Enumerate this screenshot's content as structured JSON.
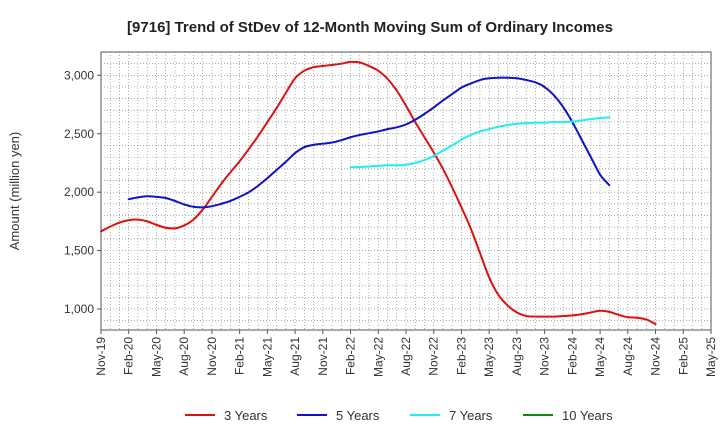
{
  "chart_data": {
    "type": "line",
    "title": "[9716]  Trend of StDev of 12-Month Moving Sum of Ordinary Incomes",
    "ylabel": "Amount (million yen)",
    "xlabel": "",
    "ylim": [
      820,
      3200
    ],
    "yticks": [
      1000,
      1500,
      2000,
      2500,
      3000
    ],
    "ytick_labels": [
      "1,000",
      "1,500",
      "2,000",
      "2,500",
      "3,000"
    ],
    "xtick_labels": [
      "Nov-19",
      "Feb-20",
      "May-20",
      "Aug-20",
      "Nov-20",
      "Feb-21",
      "May-21",
      "Aug-21",
      "Nov-21",
      "Feb-22",
      "May-22",
      "Aug-22",
      "Nov-22",
      "Feb-23",
      "May-23",
      "Aug-23",
      "Nov-23",
      "Feb-24",
      "May-24",
      "Aug-24",
      "Nov-24",
      "Feb-25",
      "May-25"
    ],
    "grid": true,
    "legend_position": "bottom",
    "colors": {
      "3 Years": "#dd1111",
      "5 Years": "#1111cc",
      "7 Years": "#22eeee",
      "10 Years": "#118811"
    },
    "series": [
      {
        "name": "3 Years",
        "color": "#dd1111",
        "values": [
          1665,
          1705,
          1740,
          1760,
          1765,
          1750,
          1720,
          1695,
          1690,
          1715,
          1765,
          1850,
          1960,
          2070,
          2170,
          2265,
          2370,
          2480,
          2600,
          2720,
          2850,
          2975,
          3040,
          3070,
          3080,
          3090,
          3100,
          3115,
          3110,
          3080,
          3040,
          2970,
          2870,
          2740,
          2600,
          2470,
          2340,
          2200,
          2040,
          1870,
          1690,
          1480,
          1270,
          1120,
          1030,
          970,
          940,
          935,
          935,
          935,
          940,
          945,
          955,
          970,
          985,
          975,
          950,
          930,
          925,
          910,
          870
        ]
      },
      {
        "name": "5 Years",
        "color": "#1111cc",
        "values": [
          null,
          null,
          null,
          null,
          null,
          null,
          null,
          null,
          null,
          null,
          null,
          null,
          null,
          null,
          null,
          null,
          null,
          null,
          null,
          null,
          null,
          null,
          null,
          null,
          null,
          null,
          null,
          null,
          null,
          null,
          null,
          null,
          null,
          null,
          null,
          null,
          null,
          null,
          null,
          null,
          null,
          null,
          null,
          null,
          null,
          null,
          null,
          null,
          null,
          null,
          null,
          null,
          null,
          null,
          null,
          null,
          null,
          null,
          null,
          null,
          null
        ],
        "values_points": [
          [
            3,
            1940
          ],
          [
            4,
            1955
          ],
          [
            5,
            1965
          ],
          [
            6,
            1960
          ],
          [
            7,
            1950
          ],
          [
            8,
            1925
          ],
          [
            9,
            1895
          ],
          [
            10,
            1875
          ],
          [
            11,
            1870
          ],
          [
            12,
            1880
          ],
          [
            13,
            1900
          ],
          [
            14,
            1925
          ],
          [
            15,
            1960
          ],
          [
            16,
            2000
          ],
          [
            17,
            2055
          ],
          [
            18,
            2120
          ],
          [
            19,
            2190
          ],
          [
            20,
            2260
          ],
          [
            21,
            2335
          ],
          [
            22,
            2385
          ],
          [
            23,
            2405
          ],
          [
            24,
            2415
          ],
          [
            25,
            2425
          ],
          [
            26,
            2445
          ],
          [
            27,
            2470
          ],
          [
            28,
            2490
          ],
          [
            29,
            2505
          ],
          [
            30,
            2520
          ],
          [
            31,
            2540
          ],
          [
            32,
            2555
          ],
          [
            33,
            2580
          ],
          [
            34,
            2620
          ],
          [
            35,
            2670
          ],
          [
            36,
            2725
          ],
          [
            37,
            2785
          ],
          [
            38,
            2840
          ],
          [
            39,
            2895
          ],
          [
            40,
            2930
          ],
          [
            41,
            2960
          ],
          [
            42,
            2975
          ],
          [
            43,
            2980
          ],
          [
            44,
            2980
          ],
          [
            45,
            2975
          ],
          [
            46,
            2960
          ],
          [
            47,
            2940
          ],
          [
            48,
            2900
          ],
          [
            49,
            2830
          ],
          [
            50,
            2730
          ],
          [
            51,
            2600
          ],
          [
            52,
            2450
          ],
          [
            53,
            2300
          ],
          [
            54,
            2150
          ],
          [
            55,
            2060
          ]
        ]
      },
      {
        "name": "7 Years",
        "color": "#22eeee",
        "values_points": [
          [
            27,
            2215
          ],
          [
            28,
            2215
          ],
          [
            29,
            2220
          ],
          [
            30,
            2225
          ],
          [
            31,
            2230
          ],
          [
            32,
            2230
          ],
          [
            33,
            2235
          ],
          [
            34,
            2250
          ],
          [
            35,
            2275
          ],
          [
            36,
            2310
          ],
          [
            37,
            2355
          ],
          [
            38,
            2400
          ],
          [
            39,
            2450
          ],
          [
            40,
            2490
          ],
          [
            41,
            2520
          ],
          [
            42,
            2540
          ],
          [
            43,
            2560
          ],
          [
            44,
            2575
          ],
          [
            45,
            2585
          ],
          [
            46,
            2590
          ],
          [
            47,
            2595
          ],
          [
            48,
            2595
          ],
          [
            49,
            2600
          ],
          [
            50,
            2600
          ],
          [
            51,
            2605
          ],
          [
            52,
            2615
          ],
          [
            53,
            2625
          ],
          [
            54,
            2635
          ],
          [
            55,
            2640
          ]
        ]
      },
      {
        "name": "10 Years",
        "color": "#118811",
        "values_points": []
      }
    ]
  }
}
